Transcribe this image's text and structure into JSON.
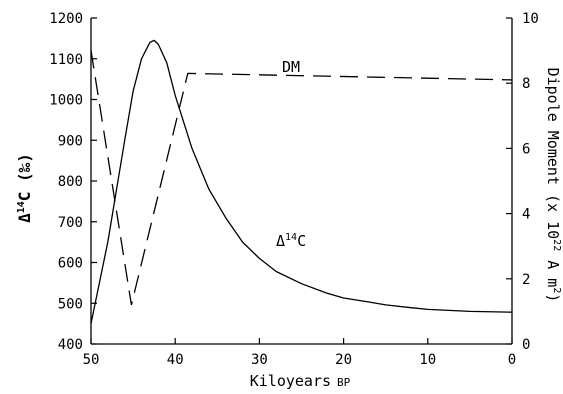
{
  "chart_data": {
    "type": "line",
    "x_axis": {
      "label_main": "Kiloyears",
      "label_sub": "BP",
      "range": [
        50,
        0
      ],
      "ticks": [
        "50",
        "40",
        "30",
        "20",
        "10",
        "0"
      ],
      "tick_values": [
        50,
        40,
        30,
        20,
        10,
        0
      ]
    },
    "y_axis_left": {
      "label_prefix": "Δ",
      "label_sup": "14",
      "label_suffix": "C (‰)",
      "range": [
        400,
        1200
      ],
      "ticks": [
        "400",
        "500",
        "600",
        "700",
        "800",
        "900",
        "1000",
        "1100",
        "1200"
      ],
      "tick_values": [
        400,
        500,
        600,
        700,
        800,
        900,
        1000,
        1100,
        1200
      ]
    },
    "y_axis_right": {
      "label_main": "Dipole Moment (x 10",
      "label_sup": "22",
      "label_mid": " A m",
      "label_sup2": "2",
      "label_end": ")",
      "range": [
        0,
        10
      ],
      "ticks": [
        "0",
        "2",
        "4",
        "6",
        "8",
        "10"
      ],
      "tick_values": [
        0,
        2,
        4,
        6,
        8,
        10
      ]
    },
    "series": [
      {
        "name": "DM",
        "axis": "right",
        "style": "dashed",
        "x": [
          50,
          45.2,
          38.5,
          0
        ],
        "y": [
          9.0,
          1.2,
          8.3,
          8.1
        ]
      },
      {
        "name_prefix": "Δ",
        "name_sup": "14",
        "name_suffix": "C",
        "axis": "left",
        "style": "solid",
        "x": [
          50,
          48,
          46,
          45,
          44,
          43,
          42.5,
          42,
          41,
          40,
          38,
          36,
          34,
          32,
          30,
          28,
          25,
          22,
          20,
          17,
          15,
          12,
          10,
          5,
          0
        ],
        "y": [
          450,
          650,
          900,
          1020,
          1100,
          1140,
          1145,
          1135,
          1090,
          1010,
          880,
          780,
          710,
          650,
          610,
          578,
          548,
          525,
          513,
          503,
          496,
          489,
          485,
          480,
          478
        ]
      }
    ],
    "grid": false
  }
}
